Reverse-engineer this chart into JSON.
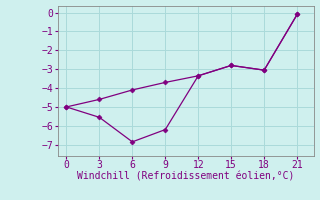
{
  "line1_x": [
    0,
    3,
    6,
    9,
    12,
    15,
    18,
    21
  ],
  "line1_y": [
    -5.0,
    -4.6,
    -4.1,
    -3.7,
    -3.35,
    -2.8,
    -3.05,
    -0.1
  ],
  "line2_x": [
    0,
    3,
    6,
    9,
    12,
    15,
    18,
    21
  ],
  "line2_y": [
    -5.0,
    -5.55,
    -6.85,
    -6.2,
    -3.35,
    -2.8,
    -3.05,
    -0.1
  ],
  "line_color": "#800080",
  "marker": "D",
  "markersize": 2.5,
  "linewidth": 0.9,
  "xlabel": "Windchill (Refroidissement éolien,°C)",
  "xlabel_fontsize": 7,
  "tick_fontsize": 7,
  "background_color": "#cff0ee",
  "grid_color": "#aadada",
  "xticks": [
    0,
    3,
    6,
    9,
    12,
    15,
    18,
    21
  ],
  "yticks": [
    0,
    -1,
    -2,
    -3,
    -4,
    -5,
    -6,
    -7
  ],
  "ylim": [
    -7.6,
    0.35
  ],
  "xlim": [
    -0.8,
    22.5
  ]
}
